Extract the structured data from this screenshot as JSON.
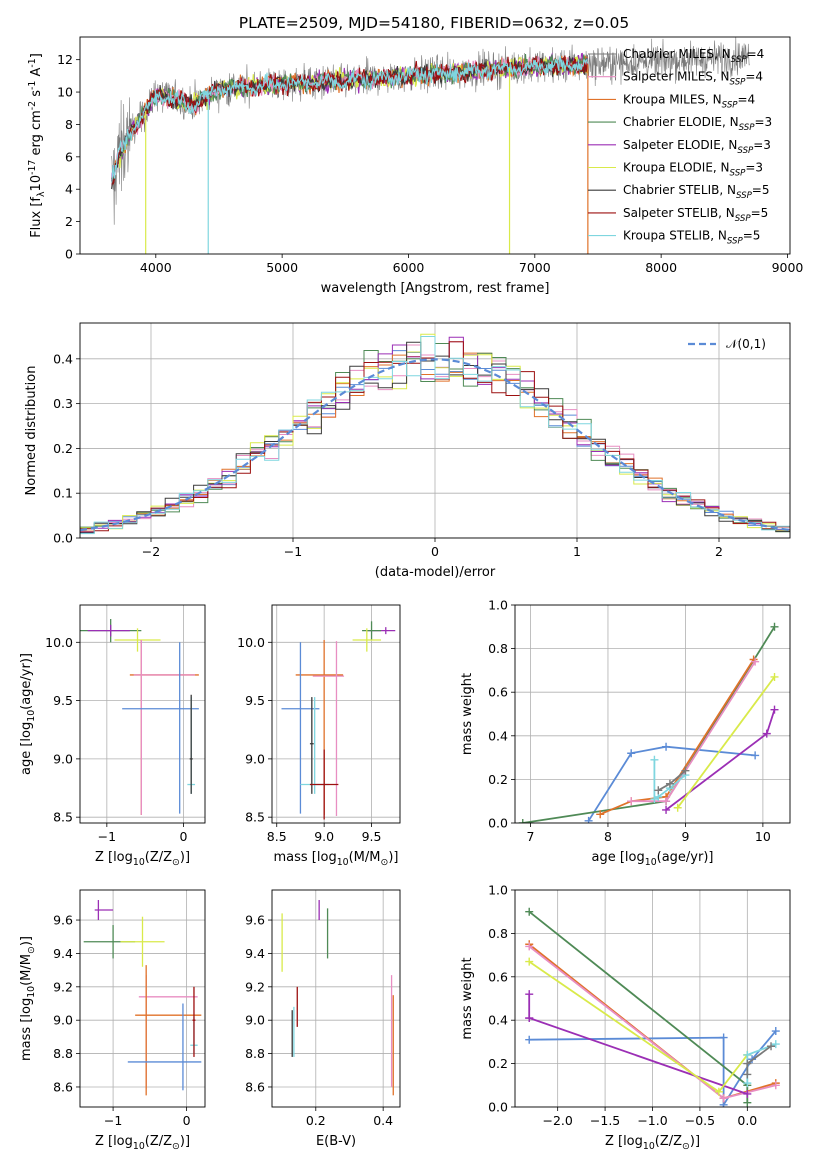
{
  "figure": {
    "title": "PLATE=2509, MJD=54180, FIBERID=0632, z=0.05"
  },
  "models": [
    {
      "name": "Chabrier MILES, N$_{SSP}$=4",
      "color": "#7a7a7a"
    },
    {
      "name": "Salpeter MILES, N$_{SSP}$=4",
      "color": "#e88ec2"
    },
    {
      "name": "Kroupa MILES, N$_{SSP}$=4",
      "color": "#e0722a"
    },
    {
      "name": "Chabrier ELODIE, N$_{SSP}$=3",
      "color": "#4f8a56"
    },
    {
      "name": "Salpeter ELODIE, N$_{SSP}$=3",
      "color": "#9b2fb5"
    },
    {
      "name": "Kroupa ELODIE, N$_{SSP}$=3",
      "color": "#d9ea4a"
    },
    {
      "name": "Chabrier STELIB, N$_{SSP}$=5",
      "color": "#3a3a3a"
    },
    {
      "name": "Salpeter STELIB, N$_{SSP}$=5",
      "color": "#9c1010"
    },
    {
      "name": "Kroupa STELIB, N$_{SSP}$=5",
      "color": "#7fd6df"
    }
  ],
  "chart_data": [
    {
      "id": "spectrum",
      "type": "line",
      "title": "PLATE=2509, MJD=54180, FIBERID=0632, z=0.05",
      "xlabel": "wavelength [Angstrom, rest frame]",
      "ylabel": "Flux [f$_\\lambda$10$^{-17}$ erg cm$^{-2}$ s$^{-1}$ A$^{-1}$]",
      "xlim": [
        3400,
        9020
      ],
      "ylim": [
        0,
        13.4
      ],
      "xticks": [
        4000,
        5000,
        6000,
        7000,
        8000,
        9000
      ],
      "yticks": [
        0,
        2,
        4,
        6,
        8,
        10,
        12
      ],
      "legend": "upper-right",
      "data_range": [
        3650,
        8700
      ],
      "model_range": [
        3650,
        7420
      ],
      "trend": [
        [
          3650,
          4.5
        ],
        [
          3700,
          5.8
        ],
        [
          3800,
          7.5
        ],
        [
          3900,
          8.6
        ],
        [
          4000,
          9.8
        ],
        [
          4100,
          9.7
        ],
        [
          4300,
          9.2
        ],
        [
          4500,
          10.2
        ],
        [
          5000,
          10.5
        ],
        [
          5500,
          10.7
        ],
        [
          6000,
          11.0
        ],
        [
          6500,
          11.3
        ],
        [
          7000,
          11.6
        ],
        [
          7400,
          11.7
        ],
        [
          8000,
          11.9
        ],
        [
          8700,
          12.2
        ]
      ]
    },
    {
      "id": "residuals",
      "type": "histogram",
      "xlabel": "(data-model)/error",
      "ylabel": "Normed distribution",
      "xlim": [
        -2.5,
        2.5
      ],
      "ylim": [
        0,
        0.48
      ],
      "xticks": [
        -2,
        -1,
        0,
        1,
        2
      ],
      "yticks": [
        0.0,
        0.1,
        0.2,
        0.3,
        0.4
      ],
      "bin_width": 0.1,
      "reference_label": "$\\mathcal{N}(0,1)$",
      "reference_color": "#5b8bd6",
      "legend": "upper-right"
    },
    {
      "id": "age-vs-Z",
      "type": "errorbar",
      "xlabel": "Z [log$_{10}$(Z/Z$_\\odot$)]",
      "ylabel": "age  [log$_{10}$(age/yr)]",
      "xlim": [
        -1.35,
        0.28
      ],
      "ylim": [
        8.45,
        10.32
      ],
      "xticks": [
        -1,
        0
      ],
      "yticks": [
        8.5,
        9.0,
        9.5,
        10.0
      ],
      "points": [
        {
          "x": -0.95,
          "y": 10.1,
          "xerr": [
            0.45,
            0.4
          ],
          "yerr": [
            0.1,
            0.1
          ],
          "color": "#4f8a56"
        },
        {
          "x": -0.95,
          "y": 10.1,
          "xerr": [
            0.3,
            0.25
          ],
          "yerr": [
            0.05,
            0.05
          ],
          "color": "#9b2fb5"
        },
        {
          "x": -0.6,
          "y": 10.02,
          "xerr": [
            0.3,
            0.3
          ],
          "yerr": [
            0.1,
            0.1
          ],
          "color": "#d9ea4a"
        },
        {
          "x": -0.55,
          "y": 9.72,
          "xerr": [
            0.15,
            0.75
          ],
          "yerr": [
            1.2,
            0.3
          ],
          "color": "#e0722a"
        },
        {
          "x": -0.55,
          "y": 9.72,
          "xerr": [
            0.1,
            0.7
          ],
          "yerr": [
            1.2,
            0.3
          ],
          "color": "#e88ec2"
        },
        {
          "x": -0.05,
          "y": 9.43,
          "xerr": [
            0.75,
            0.25
          ],
          "yerr": [
            0.9,
            0.57
          ],
          "color": "#5b8bd6"
        },
        {
          "x": 0.1,
          "y": 8.78,
          "xerr": [
            0.05,
            0.05
          ],
          "yerr": [
            0.08,
            0.75
          ],
          "color": "#7fd6df"
        },
        {
          "x": 0.1,
          "y": 9.0,
          "xerr": [
            0.02,
            0.02
          ],
          "yerr": [
            0.3,
            0.55
          ],
          "color": "#3a3a3a"
        }
      ]
    },
    {
      "id": "age-vs-mass",
      "type": "errorbar",
      "xlabel": "mass [log$_{10}$(M/M$_\\odot$)]",
      "ylabel": "",
      "xlim": [
        8.45,
        9.8
      ],
      "ylim": [
        8.45,
        10.32
      ],
      "xticks": [
        8.5,
        9.0,
        9.5
      ],
      "yticks": [
        8.5,
        9.0,
        9.5,
        10.0
      ],
      "points": [
        {
          "x": 9.65,
          "y": 10.1,
          "xerr": [
            0.2,
            0.1
          ],
          "yerr": [
            0.03,
            0.03
          ],
          "color": "#9b2fb5"
        },
        {
          "x": 9.5,
          "y": 10.1,
          "xerr": [
            0.1,
            0.1
          ],
          "yerr": [
            0.08,
            0.08
          ],
          "color": "#4f8a56"
        },
        {
          "x": 9.45,
          "y": 10.02,
          "xerr": [
            0.15,
            0.15
          ],
          "yerr": [
            0.1,
            0.1
          ],
          "color": "#d9ea4a"
        },
        {
          "x": 9.0,
          "y": 9.72,
          "xerr": [
            0.3,
            0.2
          ],
          "yerr": [
            1.2,
            0.3
          ],
          "color": "#e0722a"
        },
        {
          "x": 9.13,
          "y": 9.71,
          "xerr": [
            0.25,
            0.08
          ],
          "yerr": [
            1.2,
            0.3
          ],
          "color": "#e88ec2"
        },
        {
          "x": 8.75,
          "y": 9.43,
          "xerr": [
            0.2,
            0.2
          ],
          "yerr": [
            0.9,
            0.57
          ],
          "color": "#5b8bd6"
        },
        {
          "x": 8.9,
          "y": 8.78,
          "xerr": [
            0.15,
            0.15
          ],
          "yerr": [
            0.08,
            0.75
          ],
          "color": "#7fd6df"
        },
        {
          "x": 8.87,
          "y": 9.13,
          "xerr": [
            0.02,
            0.02
          ],
          "yerr": [
            0.43,
            0.4
          ],
          "color": "#3a3a3a"
        },
        {
          "x": 9.0,
          "y": 8.78,
          "xerr": [
            0.15,
            0.15
          ],
          "yerr": [
            0.3,
            0.3
          ],
          "color": "#9c1010"
        }
      ]
    },
    {
      "id": "mass-weight-vs-age",
      "type": "line",
      "xlabel": "age  [log$_{10}$(age/yr)]",
      "ylabel": "mass weight",
      "xlim": [
        6.8,
        10.35
      ],
      "ylim": [
        0,
        1.0
      ],
      "xticks": [
        7,
        8,
        9,
        10
      ],
      "yticks": [
        0.0,
        0.2,
        0.4,
        0.6,
        0.8,
        1.0
      ],
      "series": [
        {
          "color": "#5b8bd6",
          "x": [
            7.75,
            8.3,
            8.75,
            9.9
          ],
          "y": [
            0.01,
            0.32,
            0.35,
            0.31
          ]
        },
        {
          "color": "#4f8a56",
          "x": [
            6.9,
            8.75,
            10.15
          ],
          "y": [
            0.0,
            0.1,
            0.9
          ]
        },
        {
          "color": "#e0722a",
          "x": [
            7.9,
            8.3,
            8.75,
            9.88
          ],
          "y": [
            0.04,
            0.1,
            0.12,
            0.75
          ]
        },
        {
          "color": "#e88ec2",
          "x": [
            8.3,
            8.75,
            9.9
          ],
          "y": [
            0.1,
            0.1,
            0.74
          ]
        },
        {
          "color": "#9b2fb5",
          "x": [
            8.75,
            10.05,
            10.15
          ],
          "y": [
            0.06,
            0.41,
            0.52
          ]
        },
        {
          "color": "#d9ea4a",
          "x": [
            8.9,
            10.15
          ],
          "y": [
            0.07,
            0.67
          ]
        },
        {
          "color": "#7fd6df",
          "x": [
            8.6,
            8.6,
            8.65,
            8.8,
            9.0
          ],
          "y": [
            0.29,
            0.11,
            0.12,
            0.16,
            0.22
          ]
        },
        {
          "color": "#7a7a7a",
          "x": [
            8.65,
            8.8,
            9.0
          ],
          "y": [
            0.15,
            0.18,
            0.24
          ]
        }
      ]
    },
    {
      "id": "mass-vs-Z",
      "type": "errorbar",
      "xlabel": "Z [log$_{10}$(Z/Z$_\\odot$)]",
      "ylabel": "mass [log$_{10}$(M/M$_\\odot$)]",
      "xlim": [
        -1.45,
        0.25
      ],
      "ylim": [
        8.48,
        9.78
      ],
      "xticks": [
        -1,
        0
      ],
      "yticks": [
        8.6,
        8.8,
        9.0,
        9.2,
        9.4,
        9.6
      ],
      "points": [
        {
          "x": -1.2,
          "y": 9.66,
          "xerr": [
            0.05,
            0.2
          ],
          "yerr": [
            0.06,
            0.06
          ],
          "color": "#9b2fb5"
        },
        {
          "x": -1.0,
          "y": 9.47,
          "xerr": [
            0.4,
            0.3
          ],
          "yerr": [
            0.1,
            0.1
          ],
          "color": "#4f8a56"
        },
        {
          "x": -0.6,
          "y": 9.47,
          "xerr": [
            0.3,
            0.3
          ],
          "yerr": [
            0.15,
            0.15
          ],
          "color": "#d9ea4a"
        },
        {
          "x": -0.55,
          "y": 9.14,
          "xerr": [
            0.1,
            0.7
          ],
          "yerr": [
            0.55,
            0.13
          ],
          "color": "#e88ec2"
        },
        {
          "x": -0.55,
          "y": 9.03,
          "xerr": [
            0.15,
            0.75
          ],
          "yerr": [
            0.48,
            0.3
          ],
          "color": "#e0722a"
        },
        {
          "x": -0.05,
          "y": 8.75,
          "xerr": [
            0.75,
            0.25
          ],
          "yerr": [
            0.17,
            0.35
          ],
          "color": "#5b8bd6"
        },
        {
          "x": 0.1,
          "y": 8.85,
          "xerr": [
            0.05,
            0.05
          ],
          "yerr": [
            0.05,
            0.17
          ],
          "color": "#7fd6df"
        },
        {
          "x": 0.1,
          "y": 9.0,
          "xerr": [
            0.02,
            0.02
          ],
          "yerr": [
            0.22,
            0.2
          ],
          "color": "#9c1010"
        }
      ]
    },
    {
      "id": "mass-vs-ebv",
      "type": "errorbar",
      "xlabel": "E(B-V)",
      "ylabel": "",
      "xlim": [
        0.07,
        0.45
      ],
      "ylim": [
        8.48,
        9.78
      ],
      "xticks": [
        0.2,
        0.4
      ],
      "yticks": [
        8.6,
        8.8,
        9.0,
        9.2,
        9.4,
        9.6
      ],
      "points": [
        {
          "x": 0.1,
          "y": 9.47,
          "xerr": [
            0,
            0
          ],
          "yerr": [
            0.18,
            0.17
          ],
          "color": "#d9ea4a"
        },
        {
          "x": 0.21,
          "y": 9.66,
          "xerr": [
            0,
            0
          ],
          "yerr": [
            0.06,
            0.06
          ],
          "color": "#9b2fb5"
        },
        {
          "x": 0.235,
          "y": 9.52,
          "xerr": [
            0,
            0
          ],
          "yerr": [
            0.15,
            0.15
          ],
          "color": "#4f8a56"
        },
        {
          "x": 0.145,
          "y": 9.08,
          "xerr": [
            0,
            0
          ],
          "yerr": [
            0.12,
            0.12
          ],
          "color": "#9c1010"
        },
        {
          "x": 0.135,
          "y": 8.93,
          "xerr": [
            0,
            0
          ],
          "yerr": [
            0.15,
            0.15
          ],
          "color": "#7fd6df"
        },
        {
          "x": 0.13,
          "y": 8.92,
          "xerr": [
            0,
            0
          ],
          "yerr": [
            0.14,
            0.14
          ],
          "color": "#3a3a3a"
        },
        {
          "x": 0.425,
          "y": 9.0,
          "xerr": [
            0,
            0
          ],
          "yerr": [
            0.4,
            0.27
          ],
          "color": "#e88ec2"
        },
        {
          "x": 0.43,
          "y": 8.85,
          "xerr": [
            0,
            0
          ],
          "yerr": [
            0.3,
            0.3
          ],
          "color": "#e0722a"
        }
      ]
    },
    {
      "id": "mass-weight-vs-Z",
      "type": "line",
      "xlabel": "Z [log$_{10}$(Z/Z$_\\odot$)]",
      "ylabel": "mass weight",
      "xlim": [
        -2.45,
        0.45
      ],
      "ylim": [
        0,
        1.0
      ],
      "xticks": [
        -2.0,
        -1.5,
        -1.0,
        -0.5,
        0.0
      ],
      "yticks": [
        0.0,
        0.2,
        0.4,
        0.6,
        0.8,
        1.0
      ],
      "series": [
        {
          "color": "#5b8bd6",
          "x": [
            -2.3,
            -0.25,
            -0.25,
            0.05,
            0.3
          ],
          "y": [
            0.31,
            0.32,
            0.01,
            0.22,
            0.35
          ]
        },
        {
          "color": "#4f8a56",
          "x": [
            -2.3,
            0.0,
            0.0
          ],
          "y": [
            0.9,
            0.1,
            0.02
          ]
        },
        {
          "color": "#e0722a",
          "x": [
            -2.3,
            -0.25,
            -0.25,
            0.3
          ],
          "y": [
            0.75,
            0.04,
            0.04,
            0.11
          ]
        },
        {
          "color": "#e88ec2",
          "x": [
            -2.3,
            -0.25,
            0.3
          ],
          "y": [
            0.74,
            0.04,
            0.1
          ]
        },
        {
          "color": "#9b2fb5",
          "x": [
            -2.3,
            -2.3,
            -2.3,
            0.0
          ],
          "y": [
            0.52,
            0.41,
            0.41,
            0.06
          ]
        },
        {
          "color": "#d9ea4a",
          "x": [
            -2.3,
            -0.3,
            0.0,
            0.0
          ],
          "y": [
            0.67,
            0.07,
            0.24,
            0.24
          ]
        },
        {
          "color": "#7fd6df",
          "x": [
            0.0,
            0.0,
            0.3
          ],
          "y": [
            0.11,
            0.24,
            0.29
          ]
        },
        {
          "color": "#7a7a7a",
          "x": [
            0.0,
            0.0,
            0.25
          ],
          "y": [
            0.15,
            0.2,
            0.28
          ]
        }
      ]
    }
  ]
}
